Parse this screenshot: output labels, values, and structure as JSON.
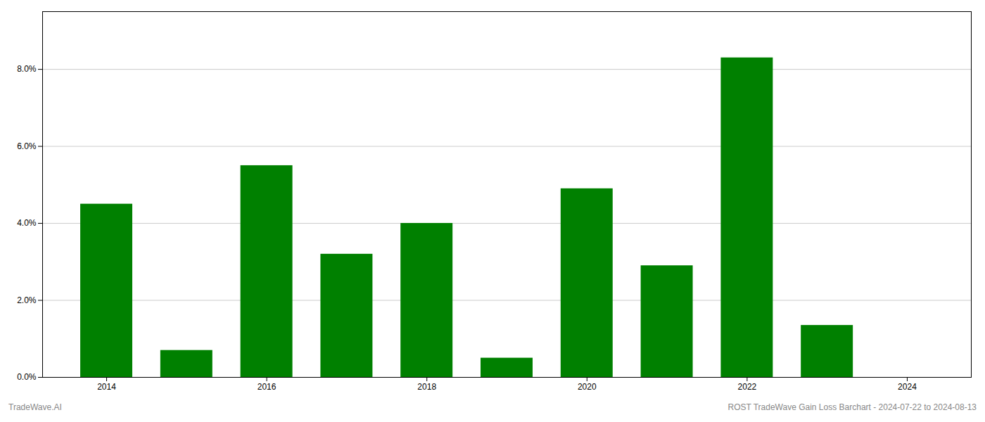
{
  "chart_data": {
    "type": "bar",
    "x": [
      2014,
      2015,
      2016,
      2017,
      2018,
      2019,
      2020,
      2021,
      2022,
      2023,
      2024
    ],
    "values": [
      0.045,
      0.007,
      0.055,
      0.032,
      0.04,
      0.005,
      0.049,
      0.029,
      0.083,
      0.0135,
      0.0
    ],
    "color": "#008000",
    "xlim": [
      2013.2,
      2024.8
    ],
    "xticks": [
      2014,
      2016,
      2018,
      2020,
      2022,
      2024
    ],
    "ylim": [
      0,
      0.095
    ],
    "yticks": [
      {
        "value": 0.0,
        "label": "0.0%"
      },
      {
        "value": 0.02,
        "label": "2.0%"
      },
      {
        "value": 0.04,
        "label": "4.0%"
      },
      {
        "value": 0.06,
        "label": "6.0%"
      },
      {
        "value": 0.08,
        "label": "8.0%"
      }
    ],
    "grid": true,
    "annotations": [
      "TradeWave.AI",
      "ROST TradeWave Gain Loss Barchart - 2024-07-22 to 2024-08-13"
    ]
  }
}
